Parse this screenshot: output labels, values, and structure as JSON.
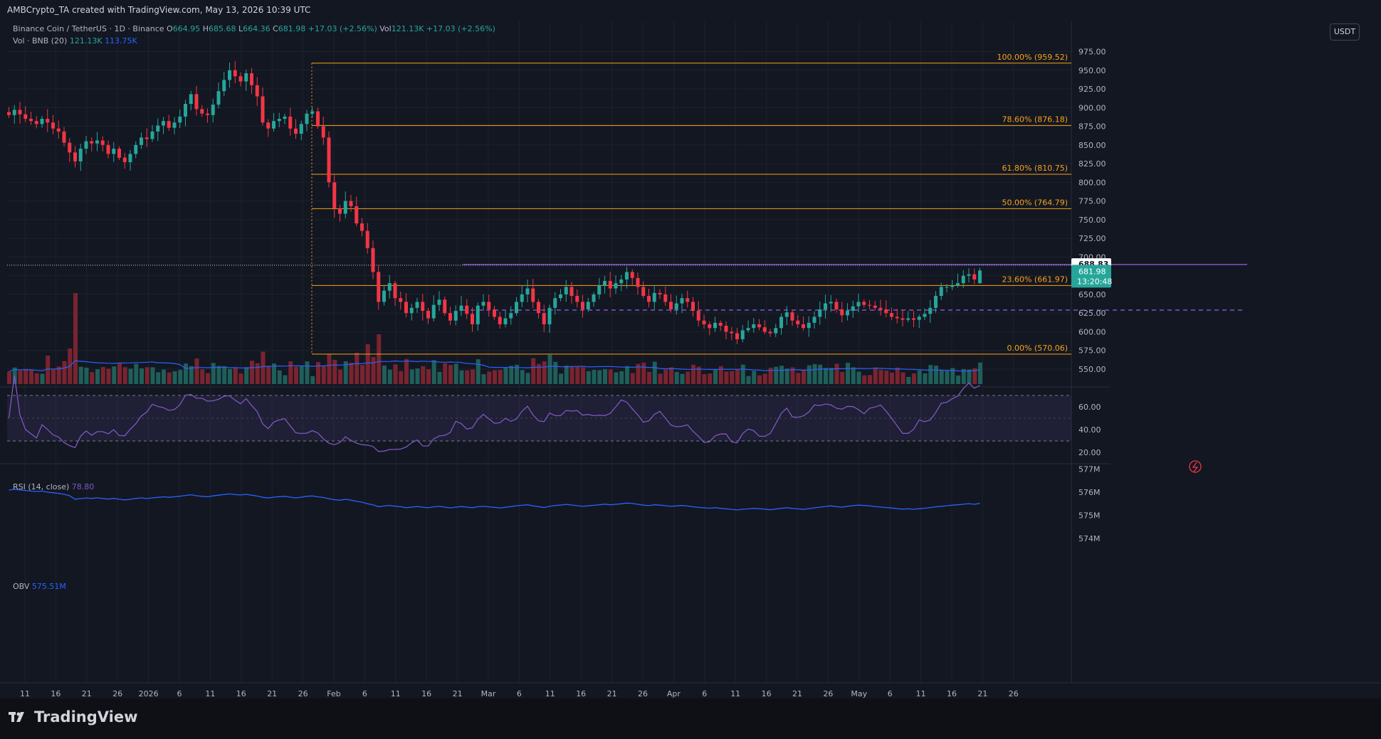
{
  "header": {
    "caption": "AMBCrypto_TA created with TradingView.com, May 13, 2026 10:39 UTC",
    "currency_button": "USDT",
    "brand": "TradingView"
  },
  "legend": {
    "symbol": "Binance Coin / TetherUS · 1D · Binance",
    "open_label": "O",
    "open": "664.95",
    "high_label": "H",
    "high": "685.68",
    "low_label": "L",
    "low": "664.36",
    "close_label": "C",
    "close": "681.98",
    "change": "+17.03 (+2.56%)",
    "vol_label": "Vol",
    "vol": "121.13K",
    "vol_change": "+17.03 (+2.56%)",
    "vol_indicator": "Vol · BNB (20)",
    "vol_value": "121.13K",
    "vol_ma": "113.75K",
    "rsi_label": "RSI (14, close)",
    "rsi_value": "78.80",
    "obv_label": "OBV",
    "obv_value": "575.51M"
  },
  "colors": {
    "background": "#131722",
    "grid": "#1e222d",
    "up": "#26a69a",
    "down": "#f23645",
    "vol_up": "#1f5f5a",
    "vol_down": "#7a2430",
    "fib": "#f7a21b",
    "purple": "#7e57c2",
    "ma": "#2962ff",
    "text": "#b2b5be"
  },
  "chart_data": [
    {
      "type": "candlestick",
      "title": "Binance Coin / TetherUS · 1D · Binance",
      "ylim": [
        530,
        985
      ],
      "y_ticks": [
        550,
        575,
        600,
        625,
        650,
        675,
        700,
        725,
        750,
        775,
        800,
        825,
        850,
        875,
        900,
        925,
        950,
        975
      ],
      "x_ticks": [
        "11",
        "16",
        "21",
        "26",
        "2026",
        "6",
        "11",
        "16",
        "21",
        "26",
        "Feb",
        "6",
        "11",
        "16",
        "21",
        "Mar",
        "6",
        "11",
        "16",
        "21",
        "26",
        "Apr",
        "6",
        "11",
        "16",
        "21",
        "26",
        "May",
        "6",
        "11",
        "16",
        "21",
        "26"
      ],
      "fibonacci": [
        {
          "label": "100.00% (959.52)",
          "value": 959.52
        },
        {
          "label": "78.60% (876.18)",
          "value": 876.18
        },
        {
          "label": "61.80% (810.75)",
          "value": 810.75
        },
        {
          "label": "50.00% (764.79)",
          "value": 764.79
        },
        {
          "label": "23.60% (661.97)",
          "value": 661.97
        },
        {
          "label": "0.00% (570.06)",
          "value": 570.06
        }
      ],
      "resistance_line": 690,
      "dashed_line": 629,
      "dotted_line": 691,
      "price_tags": [
        {
          "label": "688.83",
          "value": 688.83
        },
        {
          "label": "681.98",
          "countdown": "13:20:48",
          "value": 681.98
        }
      ],
      "closes": [
        890,
        897,
        891,
        885,
        882,
        878,
        885,
        880,
        872,
        868,
        853,
        840,
        828,
        845,
        855,
        852,
        856,
        850,
        838,
        845,
        833,
        827,
        838,
        850,
        860,
        858,
        868,
        876,
        882,
        873,
        880,
        888,
        905,
        918,
        898,
        892,
        890,
        904,
        922,
        937,
        950,
        942,
        935,
        946,
        930,
        915,
        880,
        872,
        882,
        885,
        888,
        872,
        865,
        878,
        892,
        895,
        875,
        860,
        800,
        765,
        758,
        775,
        768,
        745,
        735,
        712,
        680,
        640,
        655,
        665,
        645,
        640,
        625,
        632,
        640,
        628,
        618,
        636,
        643,
        625,
        615,
        628,
        635,
        624,
        610,
        635,
        640,
        630,
        620,
        610,
        618,
        625,
        640,
        650,
        658,
        640,
        625,
        610,
        632,
        645,
        650,
        660,
        648,
        640,
        630,
        640,
        650,
        662,
        668,
        658,
        665,
        670,
        680,
        672,
        660,
        648,
        640,
        652,
        650,
        640,
        630,
        638,
        645,
        640,
        628,
        615,
        610,
        605,
        612,
        608,
        600,
        598,
        590,
        602,
        605,
        610,
        606,
        600,
        598,
        605,
        620,
        626,
        615,
        610,
        605,
        612,
        620,
        630,
        638,
        640,
        630,
        622,
        628,
        634,
        640,
        636,
        635,
        632,
        630,
        625,
        620,
        618,
        616,
        618,
        616,
        620,
        624,
        632,
        648,
        660,
        660,
        662,
        665,
        675,
        677,
        670,
        681.98
      ],
      "volume_ma": {
        "name": "Vol · BNB (20)",
        "last": 113.75
      }
    },
    {
      "type": "line",
      "title": "RSI (14, close)",
      "ylim": [
        10,
        75
      ],
      "y_ticks": [
        20,
        40,
        60
      ],
      "upper_band": 70,
      "lower_band": 30,
      "last_value": 78.8
    },
    {
      "type": "line",
      "title": "OBV",
      "ylim": [
        573.6,
        577.1
      ],
      "y_ticks": [
        574,
        575,
        576,
        577
      ],
      "y_tick_labels": [
        "574M",
        "575M",
        "576M",
        "577M"
      ],
      "last_value": 575.51
    }
  ]
}
